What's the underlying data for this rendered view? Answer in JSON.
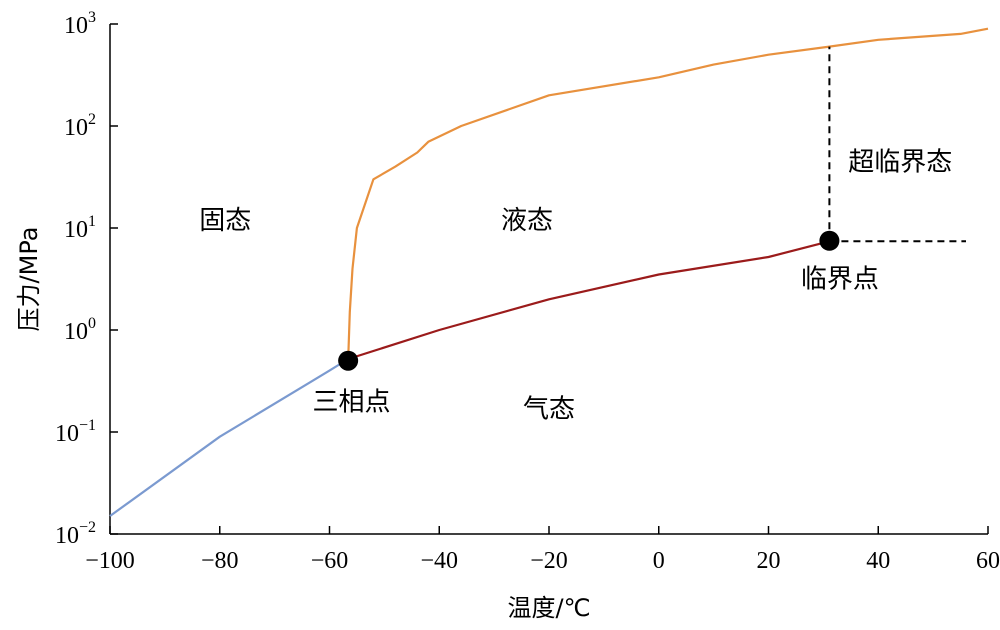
{
  "chart_data": {
    "type": "line",
    "title": "",
    "xlabel": "温度/℃",
    "ylabel": "压力/MPa",
    "xlim": [
      -100,
      60
    ],
    "ylim": [
      0.01,
      1000
    ],
    "y_scale": "log",
    "x_ticks": [
      {
        "value": -100,
        "label": "−100"
      },
      {
        "value": -80,
        "label": "−80"
      },
      {
        "value": -60,
        "label": "−60"
      },
      {
        "value": -40,
        "label": "−40"
      },
      {
        "value": -20,
        "label": "−20"
      },
      {
        "value": 0,
        "label": "0"
      },
      {
        "value": 20,
        "label": "20"
      },
      {
        "value": 40,
        "label": "40"
      },
      {
        "value": 60,
        "label": "60"
      }
    ],
    "y_ticks": [
      {
        "exp": -2,
        "base": "10",
        "sup": "−2"
      },
      {
        "exp": -1,
        "base": "10",
        "sup": "−1"
      },
      {
        "exp": 0,
        "base": "10",
        "sup": "0"
      },
      {
        "exp": 1,
        "base": "10",
        "sup": "1"
      },
      {
        "exp": 2,
        "base": "10",
        "sup": "2"
      },
      {
        "exp": 3,
        "base": "10",
        "sup": "3"
      }
    ],
    "grid": false,
    "series": [
      {
        "color": "#7b9ad0",
        "points": [
          [
            -100,
            0.015
          ],
          [
            -80,
            0.09
          ],
          [
            -60,
            0.4
          ],
          [
            -56.6,
            0.52
          ]
        ]
      },
      {
        "color": "#e8913e",
        "points": [
          [
            -56.6,
            0.52
          ],
          [
            -56.3,
            1.5
          ],
          [
            -55.8,
            4
          ],
          [
            -55,
            10
          ],
          [
            -52,
            30
          ],
          [
            -48,
            40
          ],
          [
            -44,
            55
          ],
          [
            -42,
            70
          ],
          [
            -36,
            100
          ],
          [
            -20,
            200
          ],
          [
            0,
            300
          ],
          [
            10,
            400
          ],
          [
            20,
            500
          ],
          [
            31.1,
            600
          ],
          [
            40,
            700
          ],
          [
            55,
            800
          ],
          [
            60,
            900
          ]
        ]
      },
      {
        "color": "#9b1b1b",
        "points": [
          [
            -56.6,
            0.52
          ],
          [
            -40,
            1.0
          ],
          [
            -20,
            2.0
          ],
          [
            0,
            3.5
          ],
          [
            20,
            5.2
          ],
          [
            31.1,
            7.4
          ]
        ]
      }
    ],
    "boundaries": [
      {
        "style": "dashed",
        "color": "#000000",
        "points": [
          [
            31.1,
            7.4
          ],
          [
            31.1,
            600
          ]
        ]
      },
      {
        "style": "dashed",
        "color": "#000000",
        "points": [
          [
            31.1,
            7.4
          ],
          [
            56,
            7.4
          ]
        ]
      }
    ],
    "markers": [
      {
        "name": "triple-point",
        "x": -56.6,
        "y": 0.5,
        "color": "#000000"
      },
      {
        "name": "critical-point",
        "x": 31.1,
        "y": 7.5,
        "color": "#000000"
      }
    ],
    "annotations": {
      "solid": {
        "text": "固态",
        "x": -79,
        "y": 12
      },
      "liquid": {
        "text": "液态",
        "x": -24,
        "y": 12
      },
      "supercritical": {
        "text": "超临界态",
        "x": 44,
        "y": 45
      },
      "critical_point": {
        "text": "临界点",
        "x": 33,
        "y": 3.2
      },
      "triple_point": {
        "text": "三相点",
        "x": -56,
        "y": 0.2
      },
      "gas": {
        "text": "气态",
        "x": -20,
        "y": 0.17
      }
    }
  }
}
